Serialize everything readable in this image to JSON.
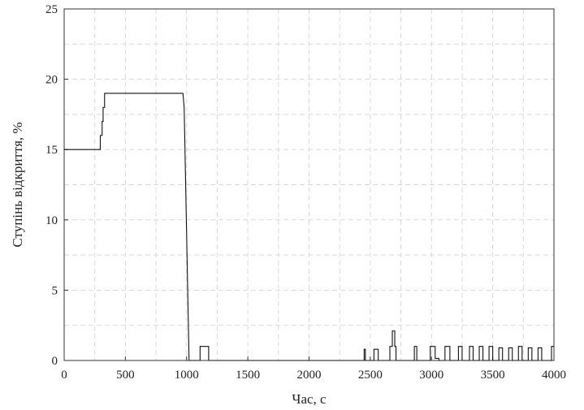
{
  "chart_data": {
    "type": "line",
    "xlabel": "Час, с",
    "ylabel": "Ступінь відкриття, %",
    "xlim": [
      0,
      4000
    ],
    "ylim": [
      0,
      25
    ],
    "x_ticks": [
      0,
      500,
      1000,
      1500,
      2000,
      2500,
      3000,
      3500,
      4000
    ],
    "y_ticks": [
      0,
      5,
      10,
      15,
      20,
      25
    ],
    "grid": true,
    "colors": {
      "line": "#111111",
      "grid": "#d9d9d9",
      "frame": "#333333"
    },
    "series": [
      {
        "points": [
          [
            0,
            15
          ],
          [
            295,
            15
          ],
          [
            295,
            16
          ],
          [
            310,
            16
          ],
          [
            310,
            17
          ],
          [
            318,
            17
          ],
          [
            318,
            18
          ],
          [
            330,
            18
          ],
          [
            330,
            19
          ],
          [
            970,
            19
          ],
          [
            980,
            18
          ],
          [
            1020,
            0
          ],
          [
            1110,
            0
          ],
          [
            1110,
            1
          ],
          [
            1180,
            1
          ],
          [
            1180,
            0
          ],
          [
            2450,
            0
          ],
          [
            2450,
            0.8
          ],
          [
            2460,
            0.8
          ],
          [
            2460,
            0
          ],
          [
            2530,
            0
          ],
          [
            2530,
            0.8
          ],
          [
            2565,
            0.8
          ],
          [
            2565,
            0
          ],
          [
            2660,
            0
          ],
          [
            2660,
            1
          ],
          [
            2680,
            1
          ],
          [
            2680,
            2.1
          ],
          [
            2700,
            2.1
          ],
          [
            2700,
            1
          ],
          [
            2710,
            1
          ],
          [
            2710,
            0
          ],
          [
            2860,
            0
          ],
          [
            2860,
            1
          ],
          [
            2880,
            1
          ],
          [
            2880,
            0
          ],
          [
            2990,
            0
          ],
          [
            2990,
            1
          ],
          [
            3030,
            1
          ],
          [
            3030,
            0.15
          ],
          [
            3060,
            0.15
          ],
          [
            3060,
            0
          ],
          [
            3110,
            0
          ],
          [
            3110,
            1
          ],
          [
            3150,
            1
          ],
          [
            3150,
            0
          ],
          [
            3220,
            0
          ],
          [
            3220,
            1
          ],
          [
            3250,
            1
          ],
          [
            3250,
            0
          ],
          [
            3310,
            0
          ],
          [
            3310,
            1
          ],
          [
            3340,
            1
          ],
          [
            3340,
            0
          ],
          [
            3390,
            0
          ],
          [
            3390,
            1
          ],
          [
            3420,
            1
          ],
          [
            3420,
            0
          ],
          [
            3470,
            0
          ],
          [
            3470,
            1
          ],
          [
            3500,
            1
          ],
          [
            3500,
            0
          ],
          [
            3550,
            0
          ],
          [
            3550,
            0.9
          ],
          [
            3580,
            0.9
          ],
          [
            3580,
            0
          ],
          [
            3630,
            0
          ],
          [
            3630,
            0.9
          ],
          [
            3660,
            0.9
          ],
          [
            3660,
            0
          ],
          [
            3710,
            0
          ],
          [
            3710,
            1
          ],
          [
            3740,
            1
          ],
          [
            3740,
            0
          ],
          [
            3790,
            0
          ],
          [
            3790,
            0.9
          ],
          [
            3820,
            0.9
          ],
          [
            3820,
            0
          ],
          [
            3870,
            0
          ],
          [
            3870,
            0.9
          ],
          [
            3900,
            0.9
          ],
          [
            3900,
            0
          ],
          [
            3980,
            0
          ],
          [
            3980,
            1
          ],
          [
            4000,
            1
          ]
        ]
      }
    ]
  }
}
